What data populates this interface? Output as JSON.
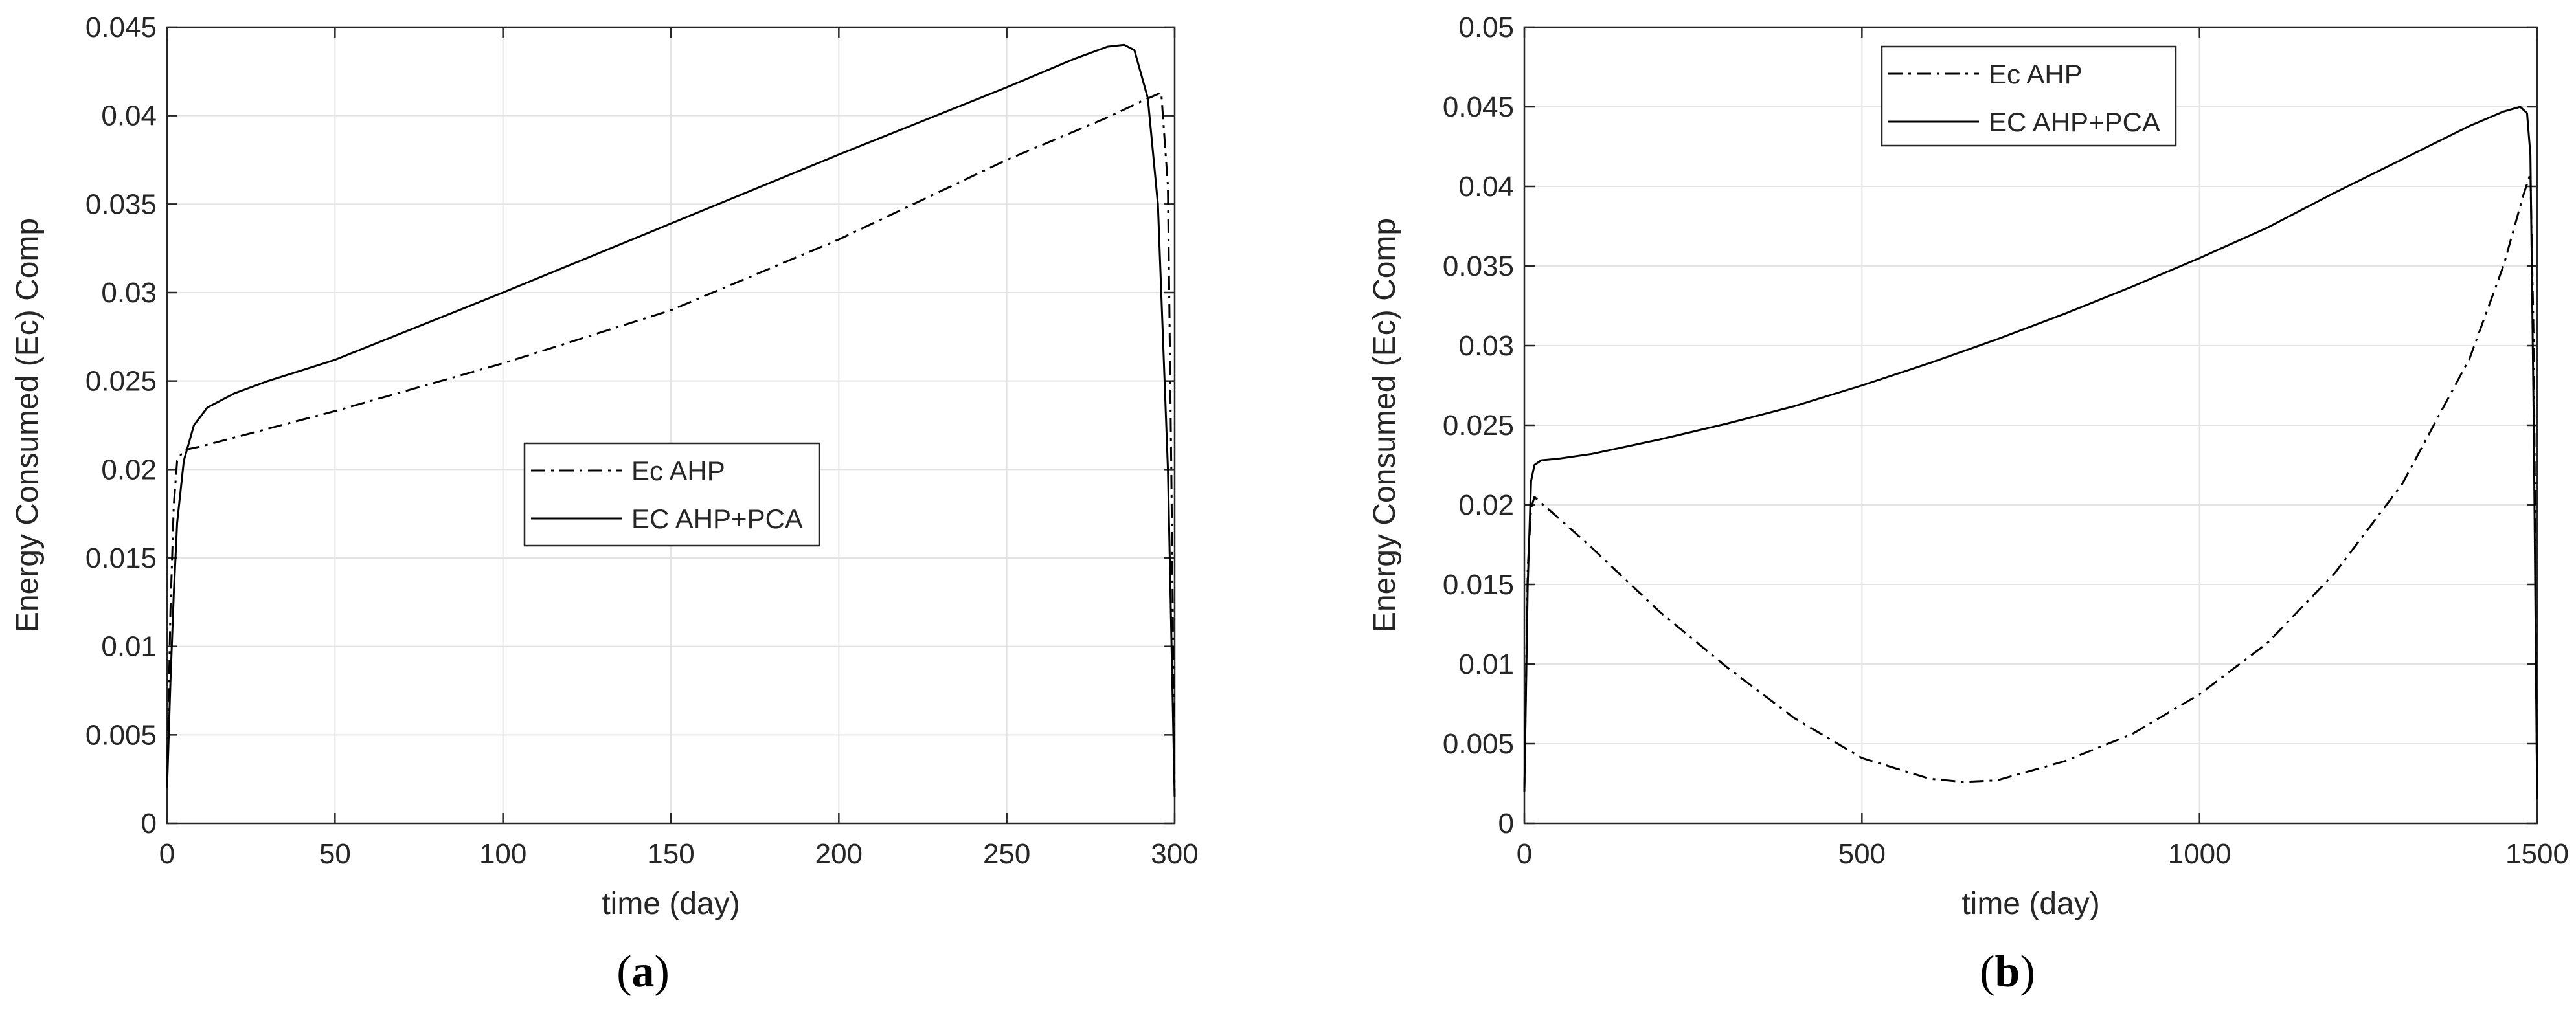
{
  "panels": [
    {
      "caption_open": "(",
      "caption_letter": "a",
      "caption_close": ")"
    },
    {
      "caption_open": "(",
      "caption_letter": "b",
      "caption_close": ")"
    }
  ],
  "chart_data": [
    {
      "type": "line",
      "title": "",
      "xlabel": "time (day)",
      "ylabel": "Energy Consumed (Ec) Comp",
      "xlim": [
        0,
        300
      ],
      "ylim": [
        0,
        0.045
      ],
      "xticks": [
        0,
        50,
        100,
        150,
        200,
        250,
        300
      ],
      "yticks": [
        0,
        0.005,
        0.01,
        0.015,
        0.02,
        0.025,
        0.03,
        0.035,
        0.04,
        0.045
      ],
      "grid": true,
      "legend_position": "center-right",
      "series": [
        {
          "name": "Ec AHP",
          "style": "dash-dot",
          "color": "#000000",
          "x": [
            0,
            1,
            2,
            3,
            5,
            10,
            20,
            50,
            100,
            150,
            200,
            250,
            280,
            290,
            296,
            298,
            299,
            300
          ],
          "y": [
            0.002,
            0.012,
            0.018,
            0.0205,
            0.0211,
            0.0213,
            0.0218,
            0.0233,
            0.026,
            0.029,
            0.033,
            0.0375,
            0.0399,
            0.0408,
            0.0413,
            0.036,
            0.02,
            0.0015
          ]
        },
        {
          "name": "EC AHP+PCA",
          "style": "solid",
          "color": "#000000",
          "x": [
            0,
            1,
            2,
            3,
            5,
            8,
            12,
            20,
            30,
            50,
            100,
            150,
            200,
            250,
            270,
            280,
            285,
            288,
            292,
            295,
            298,
            300
          ],
          "y": [
            0.002,
            0.008,
            0.013,
            0.017,
            0.0205,
            0.0225,
            0.0235,
            0.0243,
            0.025,
            0.0262,
            0.03,
            0.0339,
            0.0378,
            0.0416,
            0.0432,
            0.0439,
            0.044,
            0.0437,
            0.041,
            0.035,
            0.02,
            0.0015
          ]
        }
      ]
    },
    {
      "type": "line",
      "title": "",
      "xlabel": "time (day)",
      "ylabel": "Energy Consumed (Ec) Comp",
      "xlim": [
        0,
        1500
      ],
      "ylim": [
        0,
        0.05
      ],
      "xticks": [
        0,
        500,
        1000,
        1500
      ],
      "yticks": [
        0,
        0.005,
        0.01,
        0.015,
        0.02,
        0.025,
        0.03,
        0.035,
        0.04,
        0.045,
        0.05
      ],
      "grid": true,
      "legend_position": "top-center",
      "series": [
        {
          "name": "Ec AHP",
          "style": "dash-dot",
          "color": "#000000",
          "x": [
            0,
            5,
            10,
            15,
            20,
            50,
            100,
            200,
            300,
            400,
            500,
            600,
            650,
            700,
            800,
            900,
            1000,
            1100,
            1200,
            1300,
            1400,
            1450,
            1480,
            1490,
            1495,
            1500
          ],
          "y": [
            0.002,
            0.016,
            0.0198,
            0.0205,
            0.0203,
            0.0192,
            0.0173,
            0.0133,
            0.0098,
            0.0066,
            0.0041,
            0.0028,
            0.0026,
            0.0027,
            0.0039,
            0.0056,
            0.0081,
            0.0113,
            0.0157,
            0.0213,
            0.0292,
            0.035,
            0.0395,
            0.0408,
            0.03,
            0.0015
          ]
        },
        {
          "name": "EC AHP+PCA",
          "style": "solid",
          "color": "#000000",
          "x": [
            0,
            5,
            10,
            15,
            25,
            50,
            100,
            200,
            300,
            400,
            500,
            600,
            700,
            800,
            900,
            1000,
            1100,
            1200,
            1300,
            1400,
            1450,
            1475,
            1485,
            1490,
            1495,
            1500
          ],
          "y": [
            0.002,
            0.015,
            0.0215,
            0.0225,
            0.0228,
            0.0229,
            0.0232,
            0.0241,
            0.0251,
            0.0262,
            0.0275,
            0.0289,
            0.0304,
            0.032,
            0.0337,
            0.0355,
            0.0374,
            0.0396,
            0.0417,
            0.0438,
            0.0447,
            0.045,
            0.0446,
            0.042,
            0.025,
            0.0015
          ]
        }
      ]
    }
  ]
}
